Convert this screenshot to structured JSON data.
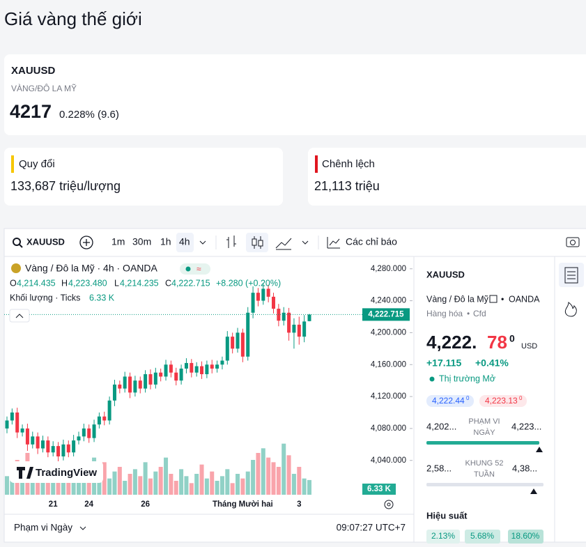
{
  "page": {
    "title": "Giá vàng thế giới",
    "symbol": "XAUUSD",
    "symbol_desc": "VÀNG/ĐÔ LA MỸ",
    "price": "4217",
    "change": "0.228% (9.6)",
    "card_left_label": "Quy đổi",
    "card_left_value": "133,687 triệu/lượng",
    "card_right_label": "Chênh lệch",
    "card_right_value": "21,113 triệu",
    "toolbar": {
      "symbol": "XAUUSD",
      "intervals": [
        "1m",
        "30m",
        "1h",
        "4h"
      ],
      "indicators": "Các chỉ báo"
    },
    "legend": {
      "name": "Vàng / Đô la Mỹ · 4h · OANDA",
      "o": "O",
      "h": "H",
      "l": "L",
      "c": "C",
      "o_value": "4,214.435",
      "h_value": "4,223.480",
      "l_value": "4,214.235",
      "c_value": "4,222.715",
      "change": "+8.280 (+0.20%)",
      "volume_name": "Khối lượng · Ticks",
      "volume_value": "6.33 K"
    },
    "price_tag": "4,222.715",
    "volume_tag": "6.33 K",
    "logo": "TradingView",
    "footer_range": "Phạm vi Ngày",
    "footer_time": "09:07:27 UTC+7",
    "side": {
      "symbol": "XAUUSD",
      "name": "Vàng / Đô la Mỹ",
      "exchange": "OANDA",
      "category": "Hàng hóa",
      "kind": "Cfd",
      "price_main": "4,222.",
      "price_red": "78",
      "price_sup": "0",
      "currency": "USD",
      "change_abs": "+17.115",
      "change_pct": "+0.41%",
      "market": "Thị trường Mở",
      "bid": "4,222.44",
      "bid_sup": "0",
      "ask": "4,223.13",
      "ask_sup": "0",
      "day_low": "4,202...",
      "day_label": [
        "PHẠM VI",
        "NGÀY"
      ],
      "day_high": "4,223...",
      "year_low": "2,58...",
      "year_label": [
        "KHUNG 52",
        "TUẦN"
      ],
      "year_high": "4,38...",
      "performance": "Hiệu suất",
      "perf": [
        "2.13%",
        "5.68%",
        "18.60%"
      ]
    }
  },
  "chart_data": {
    "type": "candlestick",
    "categories": [
      null,
      null,
      null,
      null,
      null,
      null,
      null,
      null,
      null,
      "21",
      null,
      null,
      null,
      null,
      null,
      null,
      "24",
      null,
      null,
      null,
      null,
      null,
      null,
      null,
      null,
      null,
      null,
      "26",
      null,
      null,
      null,
      null,
      null,
      null,
      null,
      null,
      null,
      null,
      null,
      null,
      null,
      null,
      null,
      null,
      null,
      null,
      "Tháng Mười hai",
      null,
      null,
      null,
      null,
      null,
      null,
      null,
      null,
      null,
      null,
      "3",
      null,
      null
    ],
    "open": [
      4080,
      4090,
      4100,
      4075,
      4080,
      4060,
      4070,
      4055,
      4065,
      4050,
      4058,
      4045,
      4060,
      4050,
      4065,
      4070,
      4080,
      4068,
      4085,
      4095,
      4090,
      4115,
      4135,
      4130,
      4145,
      4125,
      4140,
      4130,
      4148,
      4135,
      4150,
      4145,
      4160,
      4150,
      4140,
      4155,
      4162,
      4150,
      4158,
      4148,
      4160,
      4155,
      4160,
      4165,
      4195,
      4180,
      4200,
      4170,
      4225,
      4250,
      4240,
      4255,
      4245,
      4230,
      4215,
      4225,
      4200,
      4210,
      4195,
      4214.435
    ],
    "high": [
      4095,
      4105,
      4106,
      4085,
      4086,
      4076,
      4075,
      4071,
      4070,
      4064,
      4063,
      4066,
      4065,
      4072,
      4076,
      4086,
      4085,
      4091,
      4100,
      4101,
      4120,
      4141,
      4140,
      4151,
      4150,
      4146,
      4145,
      4153,
      4154,
      4156,
      4155,
      4166,
      4165,
      4156,
      4160,
      4168,
      4167,
      4163,
      4164,
      4165,
      4166,
      4165,
      4170,
      4202,
      4200,
      4206,
      4205,
      4232,
      4258,
      4256,
      4262,
      4260,
      4250,
      4236,
      4232,
      4231,
      4218,
      4220,
      4222,
      4223.48
    ],
    "low": [
      4074,
      4085,
      4068,
      4070,
      4052,
      4055,
      4048,
      4050,
      4044,
      4045,
      4038,
      4040,
      4044,
      4045,
      4060,
      4064,
      4062,
      4063,
      4080,
      4084,
      4085,
      4108,
      4124,
      4125,
      4118,
      4120,
      4124,
      4125,
      4129,
      4130,
      4139,
      4140,
      4144,
      4134,
      4135,
      4149,
      4144,
      4145,
      4142,
      4143,
      4149,
      4150,
      4154,
      4160,
      4174,
      4175,
      4163,
      4165,
      4218,
      4233,
      4235,
      4238,
      4224,
      4208,
      4209,
      4190,
      4180,
      4185,
      4188,
      4214.235
    ],
    "close": [
      4090,
      4100,
      4075,
      4080,
      4060,
      4070,
      4055,
      4065,
      4050,
      4058,
      4045,
      4060,
      4050,
      4065,
      4070,
      4080,
      4068,
      4085,
      4095,
      4090,
      4115,
      4135,
      4130,
      4145,
      4125,
      4140,
      4130,
      4148,
      4135,
      4150,
      4145,
      4160,
      4150,
      4140,
      4155,
      4162,
      4150,
      4158,
      4148,
      4160,
      4155,
      4160,
      4165,
      4195,
      4180,
      4200,
      4170,
      4225,
      4250,
      4240,
      4255,
      4245,
      4230,
      4215,
      4225,
      4200,
      4210,
      4195,
      4214,
      4222.715
    ],
    "volume": [
      8,
      12,
      15,
      10,
      18,
      14,
      9,
      12,
      7,
      10,
      13,
      8,
      11,
      9,
      6,
      10,
      12,
      16,
      9,
      14,
      7,
      10,
      12,
      6,
      9,
      11,
      8,
      14,
      7,
      10,
      12,
      16,
      9,
      6,
      11,
      8,
      5,
      9,
      13,
      7,
      10,
      6,
      8,
      11,
      5,
      9,
      7,
      10,
      15,
      18,
      20,
      16,
      14,
      12,
      22,
      17,
      9,
      12,
      7,
      6.33
    ],
    "volume_ylim": [
      0,
      30
    ],
    "up_color": "#089981",
    "down_color": "#f23645",
    "ylim": [
      3997,
      4292
    ],
    "yticks": [
      {
        "value": 4040,
        "label": "4,040.000"
      },
      {
        "value": 4080,
        "label": "4,080.000"
      },
      {
        "value": 4120,
        "label": "4,120.000"
      },
      {
        "value": 4160,
        "label": "4,160.000"
      },
      {
        "value": 4200,
        "label": "4,200.000"
      },
      {
        "value": 4240,
        "label": "4,240.000"
      },
      {
        "value": 4280,
        "label": "4,280.000"
      }
    ]
  }
}
